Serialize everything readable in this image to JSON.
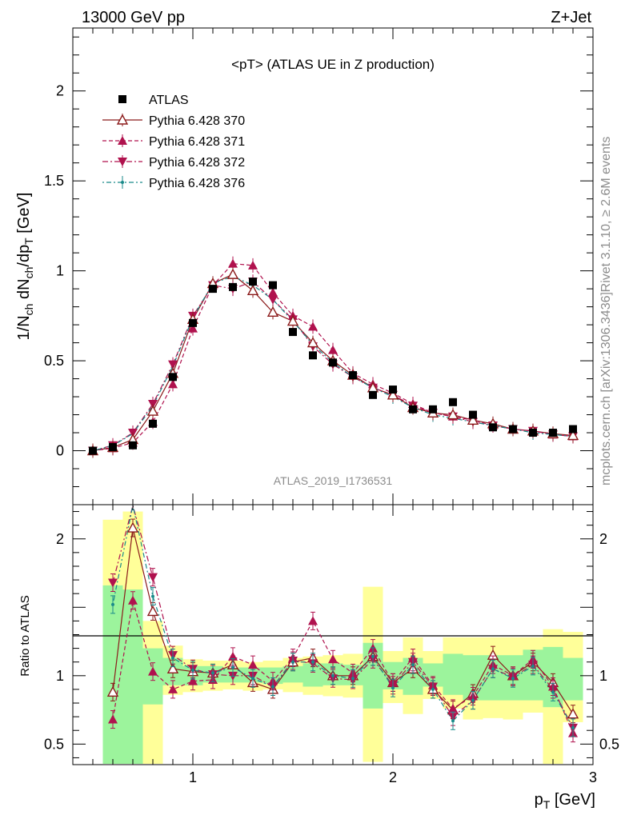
{
  "header": {
    "energy_label": "13000 GeV pp",
    "process_label": "Z+Jet"
  },
  "side_text": {
    "rivet": "Rivet 3.1.10, ≥ 2.6M events",
    "mcplots": "mcplots.cern.ch [arXiv:1306.3436]"
  },
  "watermark": "ATLAS_2019_I1736531",
  "chart_data": [
    {
      "type": "scatter",
      "title": "<pT> (ATLAS UE in Z production)",
      "ylabel": "1/N_ch dN_ch/dp_T [GeV]",
      "xlabel": "p_T [GeV]",
      "xlim": [
        0.4,
        3.0
      ],
      "ylim": [
        -0.3,
        2.35
      ],
      "xticks": [
        1,
        2,
        3
      ],
      "yticks": [
        0,
        0.5,
        1,
        1.5,
        2
      ],
      "legend_position": "top-left",
      "x": [
        0.5,
        0.6,
        0.7,
        0.8,
        0.9,
        1.0,
        1.1,
        1.2,
        1.3,
        1.4,
        1.5,
        1.6,
        1.7,
        1.8,
        1.9,
        2.0,
        2.1,
        2.2,
        2.3,
        2.4,
        2.5,
        2.6,
        2.7,
        2.8,
        2.9
      ],
      "series": [
        {
          "name": "ATLAS",
          "color": "#000000",
          "marker": "square",
          "values": [
            0.0,
            0.02,
            0.03,
            0.15,
            0.41,
            0.71,
            0.9,
            0.91,
            0.94,
            0.92,
            0.66,
            0.53,
            0.49,
            0.42,
            0.31,
            0.34,
            0.23,
            0.23,
            0.27,
            0.2,
            0.13,
            0.12,
            0.1,
            0.1,
            0.12
          ]
        },
        {
          "name": "Pythia 6.428 370",
          "color": "#8b1a1a",
          "marker": "open-triangle-up",
          "dash": "solid",
          "values": [
            0.0,
            0.018,
            0.062,
            0.22,
            0.43,
            0.73,
            0.93,
            0.98,
            0.89,
            0.77,
            0.72,
            0.6,
            0.5,
            0.42,
            0.35,
            0.31,
            0.24,
            0.21,
            0.2,
            0.17,
            0.15,
            0.12,
            0.11,
            0.095,
            0.085
          ]
        },
        {
          "name": "Pythia 6.428 371",
          "color": "#b0124e",
          "marker": "filled-triangle-up",
          "dash": "5,3",
          "values": [
            0.0,
            0.014,
            0.045,
            0.16,
            0.37,
            0.68,
            0.92,
            1.04,
            1.03,
            0.88,
            0.75,
            0.69,
            0.56,
            0.43,
            0.37,
            0.32,
            0.26,
            0.21,
            0.19,
            0.17,
            0.14,
            0.12,
            0.11,
            0.09,
            0.08
          ]
        },
        {
          "name": "Pythia 6.428 372",
          "color": "#b0124e",
          "marker": "filled-triangle-down",
          "dash": "7,3,2,3",
          "values": [
            0.0,
            0.03,
            0.1,
            0.26,
            0.48,
            0.75,
            0.92,
            0.9,
            0.94,
            0.84,
            0.73,
            0.58,
            0.48,
            0.41,
            0.35,
            0.31,
            0.25,
            0.21,
            0.19,
            0.16,
            0.14,
            0.12,
            0.11,
            0.09,
            0.08
          ]
        },
        {
          "name": "Pythia 6.428 376",
          "color": "#1a8a8a",
          "marker": "small-dot",
          "dash": "2,3,6,3",
          "values": [
            0.0,
            0.028,
            0.095,
            0.25,
            0.47,
            0.74,
            0.93,
            0.97,
            0.92,
            0.84,
            0.72,
            0.59,
            0.49,
            0.41,
            0.35,
            0.3,
            0.24,
            0.2,
            0.18,
            0.16,
            0.14,
            0.12,
            0.1,
            0.09,
            0.08
          ]
        }
      ]
    },
    {
      "type": "line",
      "ylabel": "Ratio to ATLAS",
      "xlabel": "p_T [GeV]",
      "xlim": [
        0.4,
        3.0
      ],
      "ylim": [
        0.35,
        2.25
      ],
      "xticks": [
        1,
        2,
        3
      ],
      "yticks": [
        0.5,
        1,
        2
      ],
      "reference_line": 1,
      "bands": {
        "bin_edges": [
          0.55,
          0.65,
          0.75,
          0.85,
          0.95,
          1.05,
          1.15,
          1.25,
          1.35,
          1.45,
          1.55,
          1.65,
          1.75,
          1.85,
          1.95,
          2.05,
          2.15,
          2.25,
          2.35,
          2.45,
          2.55,
          2.65,
          2.75,
          2.85,
          2.95
        ],
        "inner": {
          "color": "#9cf49c",
          "low": [
            0.35,
            0.35,
            0.79,
            0.93,
            0.93,
            0.95,
            0.95,
            0.95,
            0.94,
            0.95,
            0.92,
            0.93,
            0.93,
            0.76,
            0.9,
            0.86,
            0.92,
            0.86,
            0.82,
            0.82,
            0.82,
            0.82,
            0.77,
            0.82
          ],
          "high": [
            1.66,
            1.63,
            1.2,
            1.13,
            1.07,
            1.07,
            1.06,
            1.06,
            1.06,
            1.07,
            1.09,
            1.09,
            1.08,
            1.24,
            1.1,
            1.13,
            1.09,
            1.16,
            1.15,
            1.15,
            1.15,
            1.19,
            1.21,
            1.13
          ]
        },
        "outer": {
          "color": "#ffff99",
          "low": [
            0.35,
            0.35,
            0.35,
            0.86,
            0.88,
            0.89,
            0.9,
            0.89,
            0.9,
            0.88,
            0.86,
            0.85,
            0.84,
            0.37,
            0.8,
            0.72,
            0.83,
            0.76,
            0.68,
            0.69,
            0.68,
            0.73,
            0.35,
            0.66
          ],
          "high": [
            2.14,
            2.2,
            1.4,
            1.22,
            1.12,
            1.11,
            1.11,
            1.1,
            1.11,
            1.13,
            1.14,
            1.15,
            1.16,
            1.65,
            1.18,
            1.28,
            1.18,
            1.28,
            1.28,
            1.28,
            1.28,
            1.28,
            1.34,
            1.32
          ]
        }
      },
      "series": [
        {
          "name": "Pythia 6.428 370",
          "values": [
            null,
            0.88,
            2.08,
            1.47,
            1.05,
            1.03,
            1.02,
            1.08,
            0.95,
            0.9,
            1.1,
            1.13,
            1.0,
            1.0,
            1.14,
            0.95,
            1.05,
            0.9,
            0.75,
            0.87,
            1.15,
            1.0,
            1.1,
            0.95,
            0.72
          ]
        },
        {
          "name": "Pythia 6.428 371",
          "values": [
            null,
            0.68,
            1.55,
            1.03,
            0.9,
            0.96,
            0.97,
            1.14,
            1.08,
            0.96,
            1.13,
            1.4,
            1.12,
            1.02,
            1.2,
            0.95,
            1.13,
            0.93,
            0.76,
            0.85,
            1.08,
            1.0,
            1.12,
            0.92,
            0.58
          ]
        },
        {
          "name": "Pythia 6.428 372",
          "values": [
            null,
            1.68,
            2.55,
            1.72,
            1.15,
            1.05,
            1.01,
            1.0,
            1.0,
            0.92,
            1.11,
            1.09,
            0.98,
            0.97,
            1.12,
            0.93,
            1.1,
            0.92,
            0.7,
            0.82,
            1.05,
            0.99,
            1.08,
            0.9,
            0.62
          ]
        },
        {
          "name": "Pythia 6.428 376",
          "values": [
            null,
            1.52,
            2.3,
            1.58,
            1.13,
            1.04,
            1.02,
            1.06,
            0.98,
            0.92,
            1.1,
            1.1,
            1.0,
            0.98,
            1.14,
            0.91,
            1.08,
            0.9,
            0.67,
            0.82,
            1.05,
            0.98,
            1.07,
            0.88,
            0.62
          ]
        }
      ]
    }
  ]
}
